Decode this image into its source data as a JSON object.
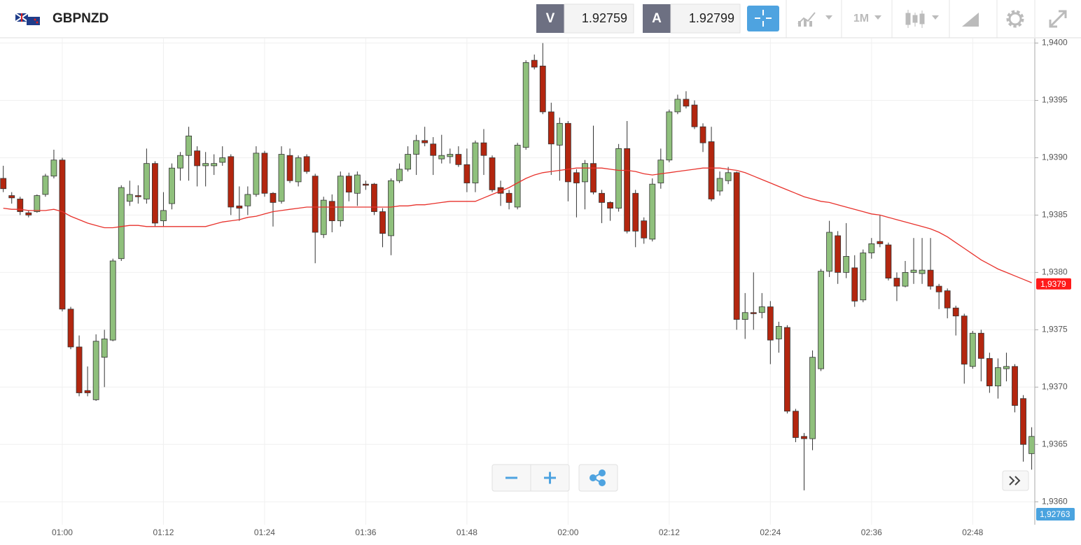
{
  "chart_data": {
    "type": "candlestick",
    "title": "GBPNZD",
    "quotes": {
      "sell_label": "V",
      "sell": 1.92759,
      "buy_label": "A",
      "buy": 1.92799,
      "timeframe": "1M"
    },
    "up_color": "#8fc07c",
    "down_color": "#b3260f",
    "ylim": [
      1.9358,
      1.94004
    ],
    "yticks": [
      {
        "value": 1.936,
        "label": "1,9360"
      },
      {
        "value": 1.9365,
        "label": "1,9365"
      },
      {
        "value": 1.937,
        "label": "1,9370"
      },
      {
        "value": 1.9375,
        "label": "1,9375"
      },
      {
        "value": 1.938,
        "label": "1,9380"
      },
      {
        "value": 1.9385,
        "label": "1,9385"
      },
      {
        "value": 1.939,
        "label": "1,9390"
      },
      {
        "value": 1.9395,
        "label": "1,9395"
      },
      {
        "value": 1.94,
        "label": "1,9400"
      }
    ],
    "grid": true,
    "last_price": {
      "value": 1.9379,
      "label": "1,9379",
      "color": "#ff1a1a"
    },
    "quote_badge": {
      "label": "1,92763",
      "color": "#4aa3df"
    },
    "categories": [
      null,
      null,
      null,
      null,
      null,
      null,
      null,
      "01:00",
      null,
      null,
      null,
      null,
      null,
      null,
      null,
      null,
      null,
      null,
      null,
      "01:12",
      null,
      null,
      null,
      null,
      null,
      null,
      null,
      null,
      null,
      null,
      null,
      "01:24",
      null,
      null,
      null,
      null,
      null,
      null,
      null,
      null,
      null,
      null,
      null,
      "01:36",
      null,
      null,
      null,
      null,
      null,
      null,
      null,
      null,
      null,
      null,
      null,
      "01:48",
      null,
      null,
      null,
      null,
      null,
      null,
      null,
      null,
      null,
      null,
      null,
      "02:00",
      null,
      null,
      null,
      null,
      null,
      null,
      null,
      null,
      null,
      null,
      null,
      "02:12",
      null,
      null,
      null,
      null,
      null,
      null,
      null,
      null,
      null,
      null,
      null,
      "02:24",
      null,
      null,
      null,
      null,
      null,
      null,
      null,
      null,
      null,
      null,
      null,
      "02:36",
      null,
      null,
      null,
      null,
      null,
      null,
      null,
      null,
      null,
      null,
      null,
      "02:48",
      null,
      null,
      null,
      null,
      null,
      null,
      null
    ],
    "open": [
      1.93882,
      1.93867,
      1.93864,
      1.93852,
      1.93853,
      1.93868,
      1.93884,
      1.93898,
      1.93768,
      1.93735,
      1.93697,
      1.93689,
      1.93726,
      1.93741,
      1.93812,
      1.93862,
      1.93867,
      1.93864,
      1.93895,
      1.93845,
      1.9386,
      1.93891,
      1.93902,
      1.93906,
      1.93893,
      1.93893,
      1.93896,
      1.93901,
      1.93858,
      1.93858,
      1.93868,
      1.93904,
      1.93869,
      1.93862,
      1.93902,
      1.93879,
      1.93901,
      1.93884,
      1.93833,
      1.93862,
      1.93845,
      1.93884,
      1.93869,
      1.93877,
      1.93877,
      1.93853,
      1.93832,
      1.9388,
      1.9389,
      1.93903,
      1.93915,
      1.93912,
      1.93899,
      1.93901,
      1.93903,
      1.93894,
      1.93878,
      1.93913,
      1.939,
      1.93874,
      1.93869,
      1.93857,
      1.93909,
      1.93985,
      1.9398,
      1.9394,
      1.93911,
      1.9393,
      1.93887,
      1.93879,
      1.93895,
      1.93869,
      1.93861,
      1.93856,
      1.93908,
      1.93869,
      1.93845,
      1.93829,
      1.93878,
      1.93898,
      1.9394,
      1.93951,
      1.93946,
      1.93927,
      1.93914,
      1.93871,
      1.9388,
      1.93887,
      1.93759,
      1.93765,
      1.93765,
      1.9377,
      1.93742,
      1.93752,
      1.93679,
      1.93657,
      1.93655,
      1.93716,
      1.93801,
      1.93832,
      1.938,
      1.93804,
      1.93776,
      1.93817,
      1.93827,
      1.93824,
      1.93795,
      1.93788,
      1.938,
      1.93799,
      1.93802,
      1.93788,
      1.93784,
      1.93769,
      1.93762,
      1.93718,
      1.93747,
      1.93725,
      1.93701,
      1.93716,
      1.93718,
      1.9369,
      1.93642
    ],
    "high": [
      1.93893,
      1.9387,
      1.93866,
      1.93854,
      1.93868,
      1.93886,
      1.93907,
      1.939,
      1.9377,
      1.93745,
      1.93718,
      1.93746,
      1.9375,
      1.93812,
      1.93876,
      1.9388,
      1.93876,
      1.93908,
      1.93897,
      1.9387,
      1.93895,
      1.93905,
      1.93927,
      1.9391,
      1.93905,
      1.93903,
      1.9391,
      1.93903,
      1.93875,
      1.93875,
      1.9391,
      1.93906,
      1.9387,
      1.9391,
      1.93908,
      1.93902,
      1.93903,
      1.93886,
      1.93866,
      1.93868,
      1.93888,
      1.93887,
      1.93888,
      1.9388,
      1.93878,
      1.93856,
      1.93882,
      1.93895,
      1.9391,
      1.9392,
      1.93927,
      1.93918,
      1.9392,
      1.93908,
      1.9391,
      1.93908,
      1.93915,
      1.93925,
      1.93902,
      1.9388,
      1.93872,
      1.93913,
      1.93985,
      1.9399,
      1.94,
      1.93948,
      1.93935,
      1.93932,
      1.9389,
      1.93898,
      1.93928,
      1.93872,
      1.93862,
      1.93912,
      1.93932,
      1.93872,
      1.93848,
      1.93882,
      1.93908,
      1.93942,
      1.93955,
      1.93958,
      1.9395,
      1.9393,
      1.93927,
      1.93888,
      1.93892,
      1.93888,
      1.93782,
      1.938,
      1.93782,
      1.93775,
      1.93757,
      1.93754,
      1.93681,
      1.9366,
      1.93732,
      1.93803,
      1.93845,
      1.93836,
      1.93843,
      1.93815,
      1.9382,
      1.9383,
      1.9385,
      1.93826,
      1.938,
      1.9381,
      1.9383,
      1.9383,
      1.9383,
      1.9379,
      1.93786,
      1.93771,
      1.93764,
      1.93749,
      1.9375,
      1.9373,
      1.93725,
      1.9373,
      1.9372,
      1.93693,
      1.93665
    ],
    "low": [
      1.9387,
      1.9386,
      1.9385,
      1.93848,
      1.93852,
      1.93866,
      1.93882,
      1.93766,
      1.93733,
      1.93692,
      1.93692,
      1.93688,
      1.937,
      1.9374,
      1.9381,
      1.93858,
      1.9386,
      1.9386,
      1.9384,
      1.9384,
      1.93855,
      1.9388,
      1.9388,
      1.93875,
      1.93875,
      1.93885,
      1.93893,
      1.9385,
      1.93845,
      1.9385,
      1.93866,
      1.93866,
      1.9384,
      1.9386,
      1.93878,
      1.93875,
      1.93886,
      1.93808,
      1.9383,
      1.93835,
      1.9384,
      1.93862,
      1.93858,
      1.93872,
      1.9385,
      1.93822,
      1.93815,
      1.93878,
      1.93888,
      1.93885,
      1.9391,
      1.93885,
      1.93895,
      1.93895,
      1.93892,
      1.9387,
      1.9387,
      1.93885,
      1.9387,
      1.93858,
      1.93855,
      1.93855,
      1.93907,
      1.93977,
      1.93938,
      1.93885,
      1.9388,
      1.93862,
      1.93848,
      1.93855,
      1.93868,
      1.93843,
      1.93845,
      1.93853,
      1.93834,
      1.93822,
      1.93825,
      1.93827,
      1.93873,
      1.93896,
      1.93938,
      1.93943,
      1.93925,
      1.93905,
      1.93862,
      1.93867,
      1.93877,
      1.9375,
      1.93742,
      1.9375,
      1.9376,
      1.9372,
      1.9373,
      1.93677,
      1.93652,
      1.9361,
      1.93645,
      1.93714,
      1.93796,
      1.9379,
      1.93795,
      1.9377,
      1.93774,
      1.93812,
      1.93822,
      1.93793,
      1.93775,
      1.93787,
      1.9379,
      1.9379,
      1.93785,
      1.93768,
      1.9376,
      1.93745,
      1.93703,
      1.93716,
      1.93705,
      1.93695,
      1.9369,
      1.93705,
      1.93678,
      1.93635,
      1.93628
    ],
    "close": [
      1.93873,
      1.93865,
      1.93853,
      1.9385,
      1.93867,
      1.93884,
      1.93898,
      1.93768,
      1.93735,
      1.93695,
      1.93695,
      1.9374,
      1.93742,
      1.9381,
      1.93874,
      1.93868,
      1.93866,
      1.93895,
      1.93843,
      1.93854,
      1.93891,
      1.93902,
      1.93919,
      1.93893,
      1.93895,
      1.93895,
      1.939,
      1.93857,
      1.93856,
      1.93868,
      1.93904,
      1.93869,
      1.93861,
      1.93903,
      1.9388,
      1.939,
      1.93888,
      1.93835,
      1.93863,
      1.93845,
      1.93884,
      1.9387,
      1.93885,
      1.93876,
      1.93853,
      1.93834,
      1.9388,
      1.9389,
      1.93903,
      1.93915,
      1.93913,
      1.93902,
      1.93902,
      1.93903,
      1.93894,
      1.93878,
      1.93913,
      1.93902,
      1.93872,
      1.93869,
      1.93861,
      1.93911,
      1.93983,
      1.93979,
      1.9394,
      1.93912,
      1.9393,
      1.93879,
      1.93878,
      1.93895,
      1.9387,
      1.93861,
      1.93856,
      1.93908,
      1.93836,
      1.93836,
      1.9383,
      1.93877,
      1.93898,
      1.9394,
      1.93951,
      1.93945,
      1.93927,
      1.93913,
      1.93864,
      1.93882,
      1.93887,
      1.93759,
      1.93765,
      1.93764,
      1.9377,
      1.93741,
      1.93753,
      1.93679,
      1.93656,
      1.93655,
      1.93726,
      1.93801,
      1.93835,
      1.938,
      1.93814,
      1.93775,
      1.93817,
      1.93825,
      1.93825,
      1.93795,
      1.93788,
      1.938,
      1.93802,
      1.93802,
      1.93788,
      1.93783,
      1.93769,
      1.93762,
      1.9372,
      1.93747,
      1.93725,
      1.93701,
      1.93717,
      1.93718,
      1.93684,
      1.9365,
      1.93657
    ],
    "ma": {
      "color": "#e8322c",
      "values": [
        1.93856,
        1.93855,
        1.93855,
        1.93854,
        1.93854,
        1.93854,
        1.93855,
        1.93853,
        1.93849,
        1.93846,
        1.93843,
        1.93841,
        1.93839,
        1.93839,
        1.9384,
        1.93841,
        1.93841,
        1.9384,
        1.9384,
        1.9384,
        1.9384,
        1.9384,
        1.9384,
        1.9384,
        1.9384,
        1.93842,
        1.93844,
        1.93845,
        1.93846,
        1.93848,
        1.93849,
        1.93851,
        1.93853,
        1.93854,
        1.93855,
        1.93856,
        1.93857,
        1.93857,
        1.93857,
        1.93857,
        1.93857,
        1.93857,
        1.93857,
        1.93857,
        1.93857,
        1.93857,
        1.93857,
        1.93858,
        1.93858,
        1.93859,
        1.93859,
        1.9386,
        1.93861,
        1.93862,
        1.93862,
        1.93862,
        1.93862,
        1.93865,
        1.93868,
        1.93871,
        1.93874,
        1.93878,
        1.93882,
        1.93885,
        1.93887,
        1.93888,
        1.93889,
        1.9389,
        1.93891,
        1.93891,
        1.93891,
        1.93891,
        1.9389,
        1.93889,
        1.93889,
        1.93888,
        1.93886,
        1.93885,
        1.93886,
        1.93887,
        1.93888,
        1.93889,
        1.9389,
        1.93891,
        1.93891,
        1.93891,
        1.9389,
        1.93889,
        1.93887,
        1.93884,
        1.93881,
        1.93878,
        1.93875,
        1.93872,
        1.93869,
        1.93866,
        1.93864,
        1.93862,
        1.93861,
        1.93859,
        1.93857,
        1.93855,
        1.93853,
        1.93851,
        1.9385,
        1.93848,
        1.93846,
        1.93844,
        1.93842,
        1.9384,
        1.93838,
        1.93835,
        1.93831,
        1.93826,
        1.93821,
        1.93816,
        1.93811,
        1.93807,
        1.93803,
        1.938,
        1.93797,
        1.93794,
        1.93791
      ]
    }
  }
}
